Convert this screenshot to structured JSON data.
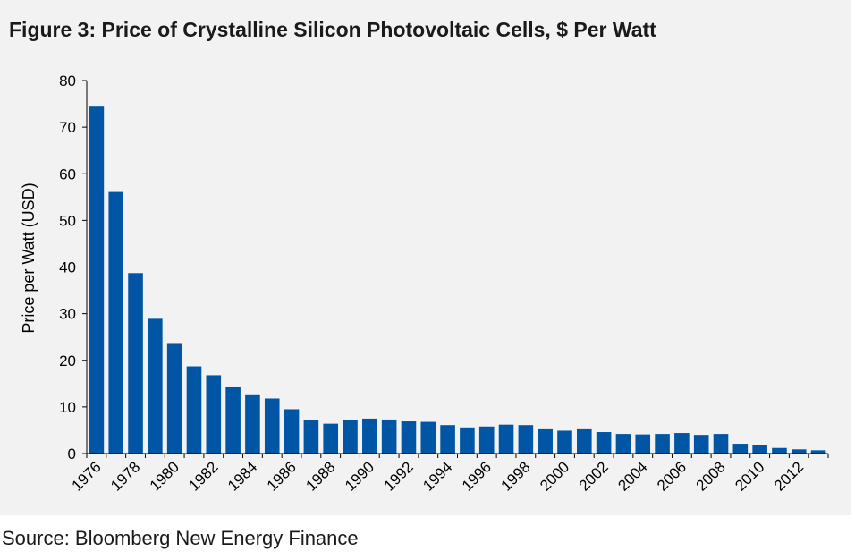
{
  "page": {
    "title": "Figure 3: Price of Crystalline Silicon Photovoltaic Cells, $ Per Watt",
    "source": "Source: Bloomberg New Energy Finance"
  },
  "colors": {
    "bar": "#0055a4",
    "panel_background": "#f2f2f2",
    "axis": "#000000"
  },
  "chart_data": {
    "type": "bar",
    "title": "Figure 3: Price of Crystalline Silicon Photovoltaic Cells, $ Per Watt",
    "xlabel": "",
    "ylabel": "Price per Watt (USD)",
    "ylim": [
      0,
      80
    ],
    "yticks": [
      "0",
      "10",
      "20",
      "30",
      "40",
      "50",
      "60",
      "70",
      "80"
    ],
    "grid": false,
    "legend": "none",
    "categories": [
      "1976",
      "1977",
      "1978",
      "1979",
      "1980",
      "1981",
      "1982",
      "1983",
      "1984",
      "1985",
      "1986",
      "1987",
      "1988",
      "1989",
      "1990",
      "1991",
      "1992",
      "1993",
      "1994",
      "1995",
      "1996",
      "1997",
      "1998",
      "1999",
      "2000",
      "2001",
      "2002",
      "2003",
      "2004",
      "2005",
      "2006",
      "2007",
      "2008",
      "2009",
      "2010",
      "2011",
      "2012",
      "2013"
    ],
    "xtick_labels": [
      "1976",
      "1978",
      "1980",
      "1982",
      "1984",
      "1986",
      "1988",
      "1990",
      "1992",
      "1994",
      "1996",
      "1998",
      "2000",
      "2002",
      "2004",
      "2006",
      "2008",
      "2010",
      "2012"
    ],
    "values": [
      74.4,
      56.1,
      38.7,
      28.9,
      23.7,
      18.7,
      16.8,
      14.2,
      12.7,
      11.8,
      9.5,
      7.1,
      6.4,
      7.1,
      7.5,
      7.3,
      6.9,
      6.8,
      6.1,
      5.6,
      5.8,
      6.2,
      6.1,
      5.2,
      4.9,
      5.2,
      4.6,
      4.2,
      4.1,
      4.2,
      4.4,
      4.0,
      4.2,
      2.1,
      1.8,
      1.2,
      0.9,
      0.7
    ]
  }
}
